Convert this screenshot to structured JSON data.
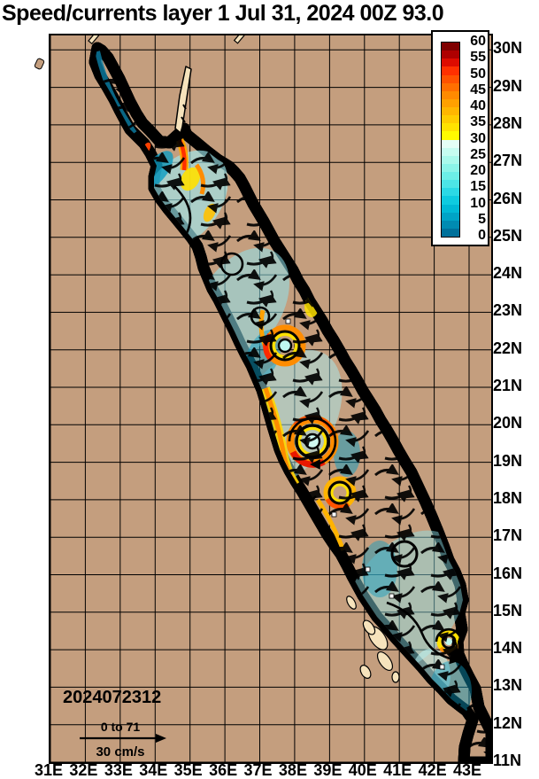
{
  "title": "Speed/currents layer 1 Jul 31, 2024 00Z 93.0",
  "timestamp": "2024072312",
  "scale_legend": {
    "range_label": "0 to 71",
    "unit_label": "30 cm/s"
  },
  "colorbar": {
    "tick_labels": [
      "60",
      "55",
      "50",
      "45",
      "40",
      "35",
      "30",
      "25",
      "20",
      "15",
      "10",
      "5",
      "0"
    ],
    "segment_colors": [
      "#7F0000",
      "#AE0000",
      "#DD0B00",
      "#FF3000",
      "#FF5200",
      "#FF6F00",
      "#FF8A00",
      "#FFA000",
      "#FFB600",
      "#FFCC00",
      "#FFE200",
      "#FFFB00",
      "#E4FEF6",
      "#C6FCF1",
      "#A9F9EC",
      "#8BF4E9",
      "#6CEEE7",
      "#4CE5E6",
      "#2BD9E5",
      "#0ECBE0",
      "#00B9D6",
      "#00A3C6",
      "#008BB2",
      "#00719B"
    ]
  },
  "axes": {
    "lat_labels": [
      "30N",
      "29N",
      "28N",
      "27N",
      "26N",
      "25N",
      "24N",
      "23N",
      "22N",
      "21N",
      "20N",
      "19N",
      "18N",
      "17N",
      "16N",
      "15N",
      "14N",
      "13N",
      "12N",
      "11N"
    ],
    "lon_labels": [
      "31E",
      "32E",
      "33E",
      "34E",
      "35E",
      "36E",
      "37E",
      "38E",
      "39E",
      "40E",
      "41E",
      "42E",
      "43E"
    ]
  },
  "map_colors": {
    "land": "#C49E7E",
    "coastal_shallow": "#F6E3BC",
    "water_base": "#3EC6DC",
    "current_vectors": "#000000",
    "graticule": "#000000"
  }
}
